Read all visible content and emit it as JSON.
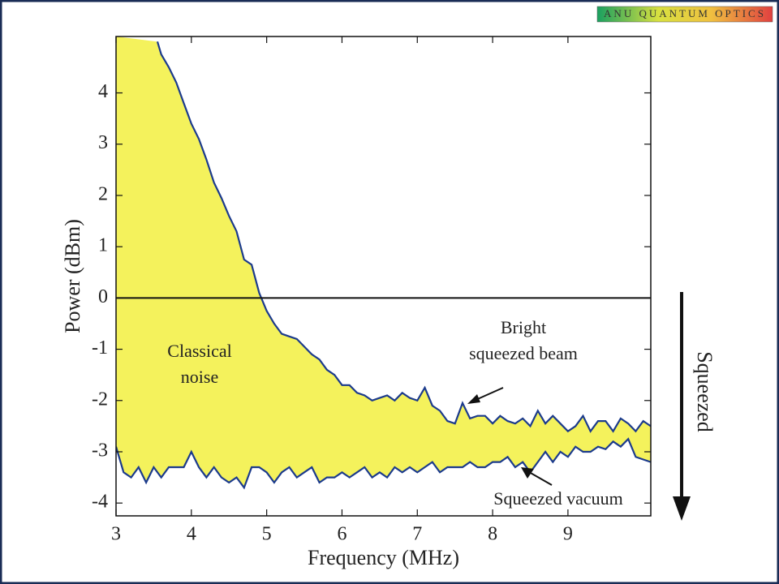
{
  "logo": "ANU QUANTUM OPTICS",
  "side_label": "Squeezed",
  "chart_data": {
    "type": "line",
    "xlabel": "Frequency (MHz)",
    "ylabel": "Power (dBm)",
    "xlim": [
      3,
      10.1
    ],
    "ylim": [
      -4.25,
      5.1
    ],
    "xticks": [
      3,
      4,
      5,
      6,
      7,
      8,
      9
    ],
    "yticks": [
      -4,
      -3,
      -2,
      -1,
      0,
      1,
      2,
      3,
      4
    ],
    "fill_color": "#f4f25c",
    "annotations": [
      {
        "text": [
          "Classical",
          "noise"
        ]
      },
      {
        "text": [
          "Bright",
          "squeezed beam"
        ]
      },
      {
        "text": [
          "Squeezed vacuum"
        ]
      }
    ],
    "series": [
      {
        "name": "Bright squeezed beam",
        "color": "#1b3a8c",
        "x": [
          3.55,
          3.6,
          3.7,
          3.8,
          3.9,
          4.0,
          4.1,
          4.2,
          4.3,
          4.4,
          4.5,
          4.6,
          4.7,
          4.8,
          4.9,
          5.0,
          5.1,
          5.2,
          5.3,
          5.4,
          5.5,
          5.6,
          5.7,
          5.8,
          5.9,
          6.0,
          6.1,
          6.2,
          6.3,
          6.4,
          6.5,
          6.6,
          6.7,
          6.8,
          6.9,
          7.0,
          7.1,
          7.2,
          7.3,
          7.4,
          7.5,
          7.6,
          7.7,
          7.8,
          7.9,
          8.0,
          8.1,
          8.2,
          8.3,
          8.4,
          8.5,
          8.6,
          8.7,
          8.8,
          8.9,
          9.0,
          9.1,
          9.2,
          9.3,
          9.4,
          9.5,
          9.6,
          9.7,
          9.8,
          9.9,
          10.0,
          10.1
        ],
        "values": [
          5.0,
          4.75,
          4.5,
          4.2,
          3.8,
          3.4,
          3.1,
          2.7,
          2.25,
          1.95,
          1.6,
          1.3,
          0.75,
          0.65,
          0.1,
          -0.25,
          -0.5,
          -0.7,
          -0.75,
          -0.8,
          -0.95,
          -1.1,
          -1.2,
          -1.4,
          -1.5,
          -1.7,
          -1.7,
          -1.85,
          -1.9,
          -2.0,
          -1.95,
          -1.9,
          -2.0,
          -1.85,
          -1.95,
          -2.0,
          -1.75,
          -2.1,
          -2.2,
          -2.4,
          -2.45,
          -2.05,
          -2.35,
          -2.3,
          -2.3,
          -2.45,
          -2.3,
          -2.4,
          -2.45,
          -2.35,
          -2.5,
          -2.2,
          -2.45,
          -2.3,
          -2.45,
          -2.6,
          -2.5,
          -2.3,
          -2.6,
          -2.4,
          -2.4,
          -2.6,
          -2.35,
          -2.45,
          -2.6,
          -2.4,
          -2.5
        ]
      },
      {
        "name": "Squeezed vacuum",
        "color": "#1b3a8c",
        "x": [
          3.0,
          3.1,
          3.2,
          3.3,
          3.4,
          3.5,
          3.6,
          3.7,
          3.8,
          3.9,
          4.0,
          4.1,
          4.2,
          4.3,
          4.4,
          4.5,
          4.6,
          4.7,
          4.8,
          4.9,
          5.0,
          5.1,
          5.2,
          5.3,
          5.4,
          5.5,
          5.6,
          5.7,
          5.8,
          5.9,
          6.0,
          6.1,
          6.2,
          6.3,
          6.4,
          6.5,
          6.6,
          6.7,
          6.8,
          6.9,
          7.0,
          7.1,
          7.2,
          7.3,
          7.4,
          7.5,
          7.6,
          7.7,
          7.8,
          7.9,
          8.0,
          8.1,
          8.2,
          8.3,
          8.4,
          8.5,
          8.6,
          8.7,
          8.8,
          8.9,
          9.0,
          9.1,
          9.2,
          9.3,
          9.4,
          9.5,
          9.6,
          9.7,
          9.8,
          9.9,
          10.0,
          10.1
        ],
        "values": [
          -2.9,
          -3.4,
          -3.5,
          -3.3,
          -3.6,
          -3.3,
          -3.5,
          -3.3,
          -3.3,
          -3.3,
          -3.0,
          -3.3,
          -3.5,
          -3.3,
          -3.5,
          -3.6,
          -3.5,
          -3.7,
          -3.3,
          -3.3,
          -3.4,
          -3.6,
          -3.4,
          -3.3,
          -3.5,
          -3.4,
          -3.3,
          -3.6,
          -3.5,
          -3.5,
          -3.4,
          -3.5,
          -3.4,
          -3.3,
          -3.5,
          -3.4,
          -3.5,
          -3.3,
          -3.4,
          -3.3,
          -3.4,
          -3.3,
          -3.2,
          -3.4,
          -3.3,
          -3.3,
          -3.3,
          -3.2,
          -3.3,
          -3.3,
          -3.2,
          -3.2,
          -3.1,
          -3.3,
          -3.2,
          -3.4,
          -3.2,
          -3.0,
          -3.2,
          -3.0,
          -3.1,
          -2.9,
          -3.0,
          -3.0,
          -2.9,
          -2.95,
          -2.8,
          -2.9,
          -2.75,
          -3.1,
          -3.15,
          -3.2
        ]
      }
    ]
  }
}
